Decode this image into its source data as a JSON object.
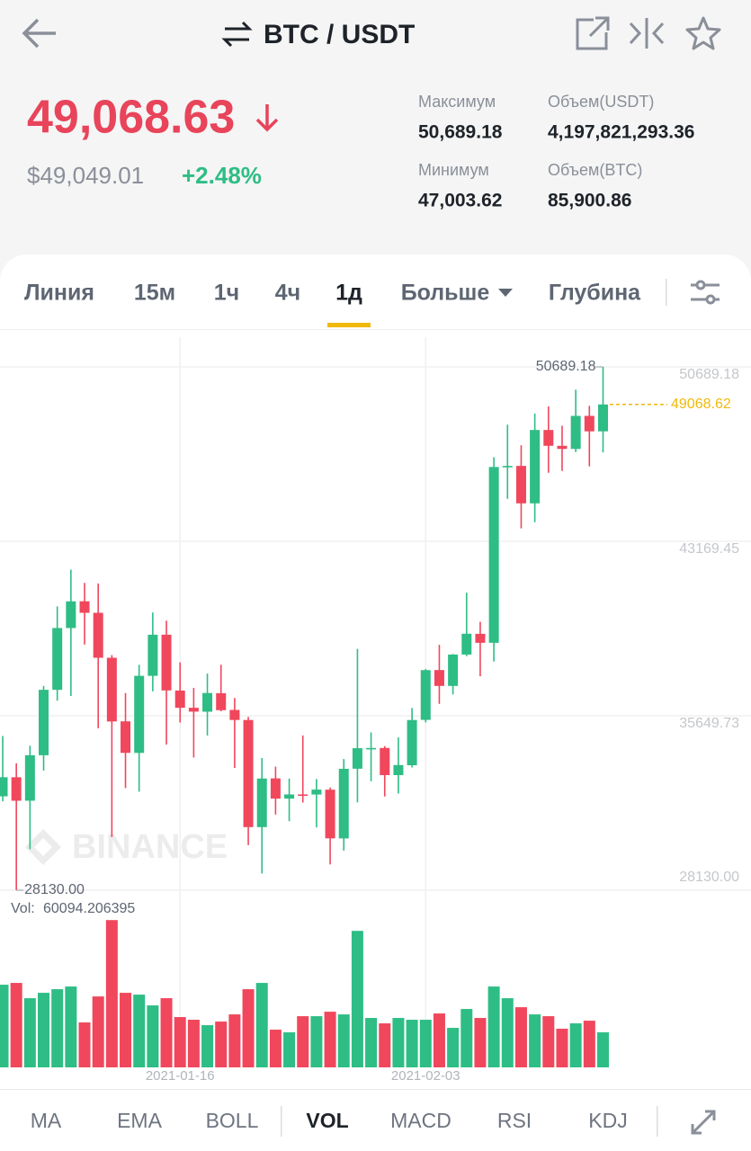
{
  "header": {
    "pair": "BTC / USDT",
    "price": "49,068.63",
    "price_usd": "$49,049.01",
    "change": "+2.48%",
    "stats": [
      {
        "label": "Максимум",
        "value": "50,689.18"
      },
      {
        "label": "Объем(USDT)",
        "value": "4,197,821,293.36"
      },
      {
        "label": "Минимум",
        "value": "47,003.62"
      },
      {
        "label": "Объем(BTC)",
        "value": "85,900.86"
      }
    ]
  },
  "tabs": [
    "Линия",
    "15м",
    "1ч",
    "4ч",
    "1д",
    "Больше",
    "Глубина"
  ],
  "active_tab": 4,
  "indicators": [
    "MA",
    "EMA",
    "BOLL",
    "VOL",
    "MACD",
    "RSI",
    "KDJ"
  ],
  "active_indicator": 3,
  "chart_data": {
    "type": "candlestick",
    "watermark": "BINANCE",
    "categories": [
      null,
      null,
      null,
      null,
      null,
      null,
      null,
      null,
      null,
      null,
      null,
      null,
      null,
      "2021-01-16",
      null,
      null,
      null,
      null,
      null,
      null,
      null,
      null,
      null,
      null,
      null,
      null,
      null,
      null,
      null,
      null,
      null,
      "2021-02-03",
      null,
      null,
      null,
      null,
      null,
      null,
      null,
      null,
      null,
      null,
      null,
      null,
      null
    ],
    "open": [
      32178,
      33000,
      31989,
      33949,
      36769,
      39432,
      40586,
      40088,
      38150,
      35410,
      34049,
      37371,
      39145,
      36737,
      35994,
      35825,
      36622,
      35901,
      35468,
      30851,
      32950,
      32078,
      32259,
      32254,
      32464,
      30362,
      33368,
      34246,
      34262,
      33092,
      33517,
      35472,
      37620,
      36936,
      38289,
      39181,
      38795,
      46374,
      46420,
      44807,
      47969,
      47287,
      47153,
      48577,
      47911
    ],
    "high": [
      34778,
      33600,
      34360,
      36939,
      40365,
      41950,
      41380,
      41350,
      38264,
      36628,
      37850,
      40100,
      39747,
      37950,
      36852,
      37469,
      37850,
      36415,
      35600,
      33826,
      33456,
      32944,
      34802,
      32921,
      32557,
      33783,
      38531,
      34933,
      34342,
      34717,
      35984,
      37662,
      38708,
      38310,
      40955,
      39700,
      46794,
      48200,
      47310,
      48678,
      48985,
      48150,
      49707,
      49010,
      50689.18
    ],
    "low": [
      31962,
      28130,
      29900,
      33288,
      36300,
      36500,
      38720,
      35111,
      30420,
      32531,
      32380,
      36701,
      34408,
      35357,
      33850,
      34800,
      35844,
      33400,
      30071,
      28850,
      31390,
      31106,
      31910,
      30837,
      29241,
      29842,
      31915,
      32825,
      32171,
      32296,
      33418,
      35362,
      36161,
      36570,
      38215,
      37351,
      37988,
      45000,
      43727,
      43994,
      46125,
      46202,
      47014,
      46400,
      47003.62
    ],
    "close": [
      33000,
      31988,
      33949,
      36769,
      39432,
      40582,
      40088,
      38150,
      35404,
      34051,
      37371,
      39144,
      36742,
      35994,
      35828,
      36631,
      35891,
      35468,
      30850,
      32945,
      32078,
      32259,
      32254,
      32467,
      30366,
      33364,
      34252,
      34262,
      33092,
      33526,
      35466,
      37618,
      36936,
      38290,
      39186,
      38795,
      46374,
      46420,
      44807,
      47969,
      47287,
      47153,
      48577,
      47911,
      49068.62
    ],
    "volume": [
      141800,
      144900,
      118700,
      127900,
      134100,
      138700,
      77100,
      121700,
      252700,
      127900,
      124800,
      106300,
      118700,
      86300,
      81700,
      72400,
      78600,
      90900,
      134100,
      144900,
      64700,
      60100,
      87800,
      87800,
      95500,
      90900,
      234200,
      84800,
      75500,
      84800,
      81700,
      81700,
      92500,
      67800,
      100200,
      84800,
      138700,
      118700,
      103200,
      90900,
      87800,
      66300,
      75500,
      80100,
      60094.206395
    ],
    "volume_label": "Vol:",
    "min_label": "28130.00",
    "up_color": "#2ebd85",
    "down_color": "#f0475c",
    "last_price_color": "#f0b90b",
    "ylim": [
      27742,
      52162
    ],
    "yticks": [
      {
        "value": 28130,
        "label": "28130.00"
      },
      35649.73,
      43169.45,
      50689.18
    ],
    "volume_ylim": [
      0,
      253000
    ],
    "grid": true
  }
}
